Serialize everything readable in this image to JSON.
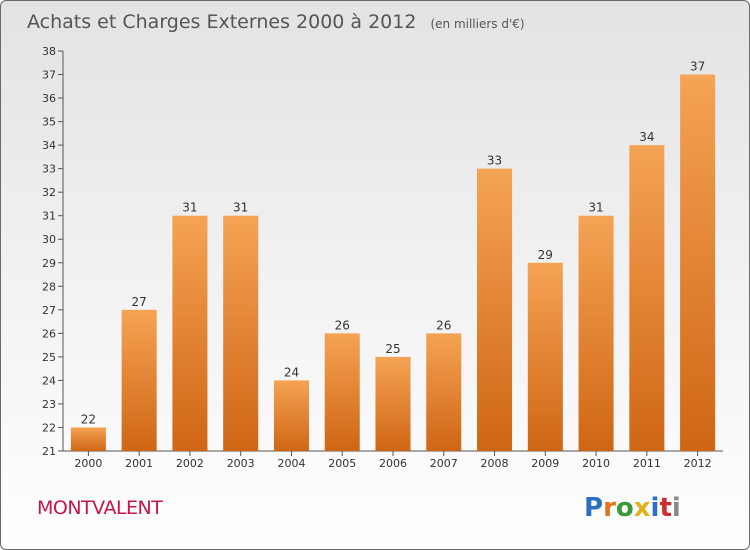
{
  "chart_data": {
    "type": "bar",
    "title": "Achats et Charges Externes 2000 à 2012",
    "subtitle": "(en milliers d'€)",
    "categories": [
      "2000",
      "2001",
      "2002",
      "2003",
      "2004",
      "2005",
      "2006",
      "2007",
      "2008",
      "2009",
      "2010",
      "2011",
      "2012"
    ],
    "values": [
      22,
      27,
      31,
      31,
      24,
      26,
      25,
      26,
      33,
      29,
      31,
      34,
      37
    ],
    "ylim": [
      21,
      38
    ],
    "yticks": [
      21,
      22,
      23,
      24,
      25,
      26,
      27,
      28,
      29,
      30,
      31,
      32,
      33,
      34,
      35,
      36,
      37,
      38
    ],
    "grid": false,
    "xlabel": "",
    "ylabel": ""
  },
  "place_name": "MONTVALENT",
  "logo": {
    "text": "Proxiti",
    "letter_colors": [
      "#2b6fc4",
      "#e8711c",
      "#3a9a35",
      "#e3b21b",
      "#2b6fc4",
      "#cf2d2d",
      "#8a8a8a"
    ]
  },
  "colors": {
    "bar_top": "#f5a354",
    "bar_bottom": "#cf6614",
    "axis": "#555555",
    "title": "#555555",
    "place": "#c8154a"
  }
}
